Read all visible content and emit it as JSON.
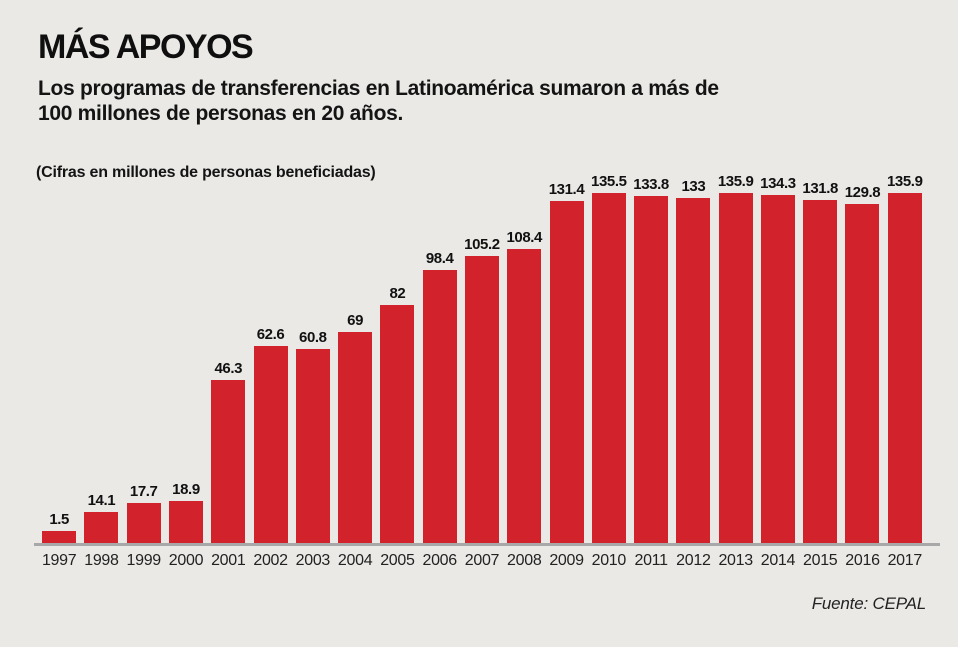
{
  "header": {
    "title": "MÁS APOYOS",
    "subtitle_line1": "Los programas de transferencias en Latinoamérica sumaron a más de",
    "subtitle_line2": "100 millones de personas en 20 años.",
    "note": "(Cifras en millones de personas beneficiadas)"
  },
  "footer": {
    "source": "Fuente: CEPAL"
  },
  "chart_data": {
    "type": "bar",
    "title": "MÁS APOYOS",
    "subtitle": "Los programas de transferencias en Latinoamérica sumaron a más de 100 millones de personas en 20 años.",
    "unit_note": "(Cifras en millones de personas beneficiadas)",
    "source": "Fuente: CEPAL",
    "categories": [
      "1997",
      "1998",
      "1999",
      "2000",
      "2001",
      "2002",
      "2003",
      "2004",
      "2005",
      "2006",
      "2007",
      "2008",
      "2009",
      "2010",
      "2011",
      "2012",
      "2013",
      "2014",
      "2015",
      "2016",
      "2017"
    ],
    "values": [
      1.5,
      14.1,
      17.7,
      18.9,
      46.3,
      62.6,
      60.8,
      69,
      82,
      98.4,
      105.2,
      108.4,
      131.4,
      135.5,
      133.8,
      133,
      135.9,
      134.3,
      131.8,
      129.8,
      135.9
    ],
    "xlabel": "",
    "ylabel": "",
    "ylim": [
      0,
      140
    ],
    "grid": false,
    "legend": false,
    "data_labels_shown": true,
    "bar_color": "#d2232c",
    "axis_line_color": "#a8a8a8",
    "background_color": "#eae9e6",
    "text_color": "#1a1a1a"
  }
}
